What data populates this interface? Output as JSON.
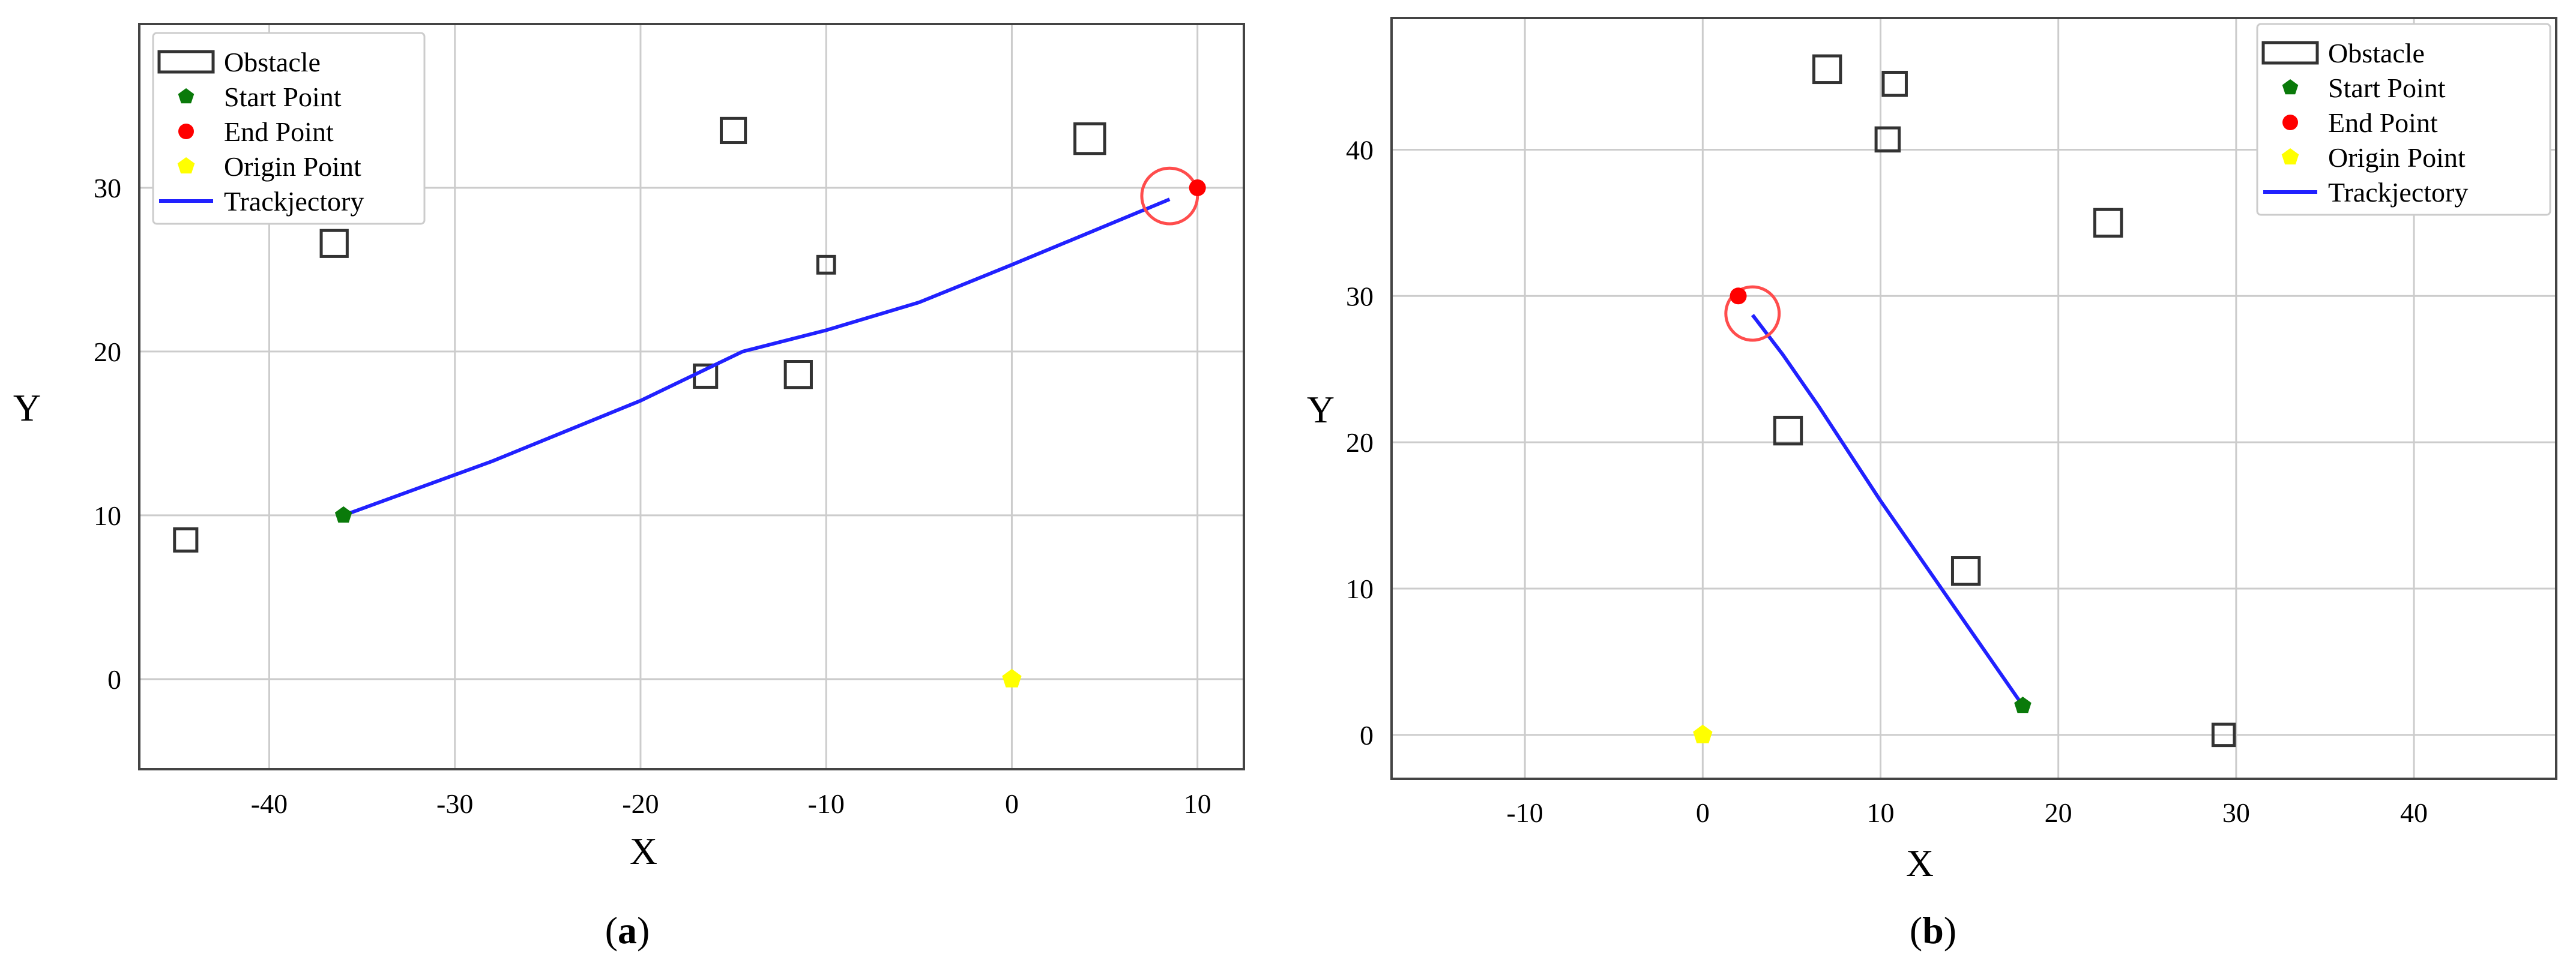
{
  "chart_data": [
    {
      "type": "scatter",
      "caption": {
        "open": "(",
        "letter": "a",
        "close": ")"
      },
      "xlabel": "X",
      "ylabel": "Y",
      "xlim": [
        -47,
        12.5
      ],
      "ylim": [
        -5.5,
        40
      ],
      "xticks": [
        -40,
        -30,
        -20,
        -10,
        0,
        10
      ],
      "yticks": [
        0,
        10,
        20,
        30
      ],
      "grid": true,
      "legend_position": "top-left",
      "legend": [
        "Obstacle",
        "Start Point",
        "End Point",
        "Origin Point",
        "Trackjectory"
      ],
      "obstacles": [
        {
          "x": -44.5,
          "y": 8.5,
          "size": 1.2
        },
        {
          "x": -36.5,
          "y": 26.6,
          "size": 1.4
        },
        {
          "x": -15.0,
          "y": 33.5,
          "size": 1.3
        },
        {
          "x": -10.0,
          "y": 25.3,
          "size": 0.9
        },
        {
          "x": -16.5,
          "y": 18.5,
          "size": 1.2
        },
        {
          "x": -11.5,
          "y": 18.6,
          "size": 1.4
        },
        {
          "x": 4.2,
          "y": 33.0,
          "size": 1.6
        }
      ],
      "start_point": {
        "x": -36,
        "y": 10
      },
      "end_point": {
        "x": 10,
        "y": 30
      },
      "origin_point": {
        "x": 0,
        "y": 0
      },
      "goal_circle": {
        "x": 8.5,
        "y": 29.5,
        "r": 1.5
      },
      "trajectory": [
        {
          "x": -36,
          "y": 10
        },
        {
          "x": -28,
          "y": 13.3
        },
        {
          "x": -20,
          "y": 17
        },
        {
          "x": -14.5,
          "y": 20
        },
        {
          "x": -10,
          "y": 21.3
        },
        {
          "x": -5,
          "y": 23
        },
        {
          "x": 0,
          "y": 25.3
        },
        {
          "x": 8.5,
          "y": 29.3
        }
      ],
      "colors": {
        "trajectory": "#2121ff",
        "start": "#0a7a0a",
        "end": "#ff0000",
        "origin": "#ffff00",
        "goal_circle": "#ff4d4d",
        "obstacle": "#333333"
      }
    },
    {
      "type": "scatter",
      "caption": {
        "open": "(",
        "letter": "b",
        "close": ")"
      },
      "xlabel": "X",
      "ylabel": "Y",
      "xlim": [
        -17.5,
        48
      ],
      "ylim": [
        -3,
        49
      ],
      "xticks": [
        -10,
        0,
        10,
        20,
        30,
        40
      ],
      "yticks": [
        0,
        10,
        20,
        30,
        40
      ],
      "grid": true,
      "legend_position": "top-right",
      "legend": [
        "Obstacle",
        "Start Point",
        "End Point",
        "Origin Point",
        "Trackjectory"
      ],
      "obstacles": [
        {
          "x": 7.0,
          "y": 45.5,
          "size": 1.5
        },
        {
          "x": 10.8,
          "y": 44.5,
          "size": 1.3
        },
        {
          "x": 10.4,
          "y": 40.7,
          "size": 1.3
        },
        {
          "x": 22.8,
          "y": 35.0,
          "size": 1.5
        },
        {
          "x": 4.8,
          "y": 20.8,
          "size": 1.5
        },
        {
          "x": 14.8,
          "y": 11.2,
          "size": 1.5
        },
        {
          "x": 29.3,
          "y": 0.0,
          "size": 1.2
        }
      ],
      "start_point": {
        "x": 18,
        "y": 2
      },
      "end_point": {
        "x": 2,
        "y": 30
      },
      "origin_point": {
        "x": 0,
        "y": 0
      },
      "goal_circle": {
        "x": 2.8,
        "y": 28.8,
        "r": 1.5
      },
      "trajectory": [
        {
          "x": 18,
          "y": 2
        },
        {
          "x": 14,
          "y": 9
        },
        {
          "x": 10,
          "y": 16
        },
        {
          "x": 6.5,
          "y": 22.5
        },
        {
          "x": 4.5,
          "y": 26
        },
        {
          "x": 2.8,
          "y": 28.7
        }
      ],
      "colors": {
        "trajectory": "#2121ff",
        "start": "#0a7a0a",
        "end": "#ff0000",
        "origin": "#ffff00",
        "goal_circle": "#ff4d4d",
        "obstacle": "#333333"
      }
    }
  ]
}
